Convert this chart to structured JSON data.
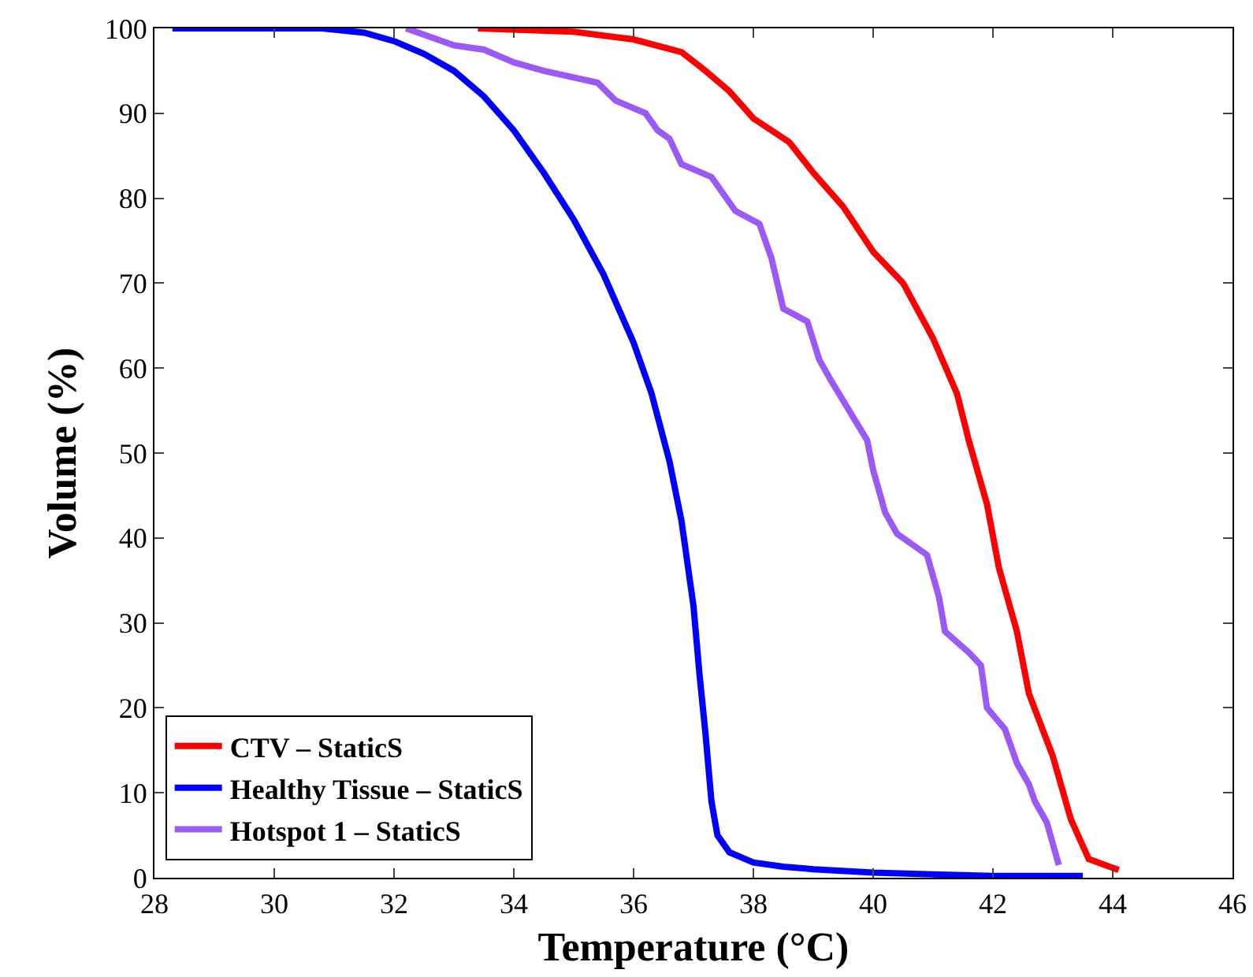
{
  "chart_data": {
    "type": "line",
    "xlabel": "Temperature (°C)",
    "ylabel": "Volume (%)",
    "xlim": [
      28,
      46
    ],
    "xticks": [
      28,
      30,
      32,
      34,
      36,
      38,
      40,
      42,
      44,
      46
    ],
    "ylim": [
      0,
      100
    ],
    "yticks": [
      0,
      10,
      20,
      30,
      40,
      50,
      60,
      70,
      80,
      90,
      100
    ],
    "grid": false,
    "legend": "bottom left",
    "line_style": "solid",
    "marker": "none",
    "series": [
      {
        "name": "CTV – StaticS",
        "color": "#ff0000",
        "x": [
          33.4,
          35,
          36,
          36.8,
          37.2,
          37.6,
          38,
          38.6,
          39,
          39.5,
          40,
          40.5,
          41,
          41.4,
          41.6,
          41.9,
          42.1,
          42.4,
          42.6,
          43,
          43.3,
          43.6,
          44.1
        ],
        "values": [
          100,
          99.6,
          98.7,
          97.2,
          95,
          92.6,
          89.4,
          86.6,
          83,
          79,
          73.7,
          70,
          63.5,
          57,
          51.4,
          44,
          36.5,
          29,
          21.7,
          14.3,
          6.9,
          2.2,
          0.9
        ]
      },
      {
        "name": "Healthy Tissue – StaticS",
        "color": "#0000ff",
        "x": [
          28.3,
          30.8,
          31.5,
          32,
          32.5,
          33,
          33.5,
          34,
          34.5,
          35,
          35.5,
          36,
          36.3,
          36.6,
          36.8,
          37,
          37.1,
          37.2,
          37.3,
          37.4,
          37.6,
          38,
          38.5,
          39,
          40,
          41,
          42,
          43.5
        ],
        "values": [
          100,
          100,
          99.5,
          98.5,
          97,
          95,
          92,
          88,
          83,
          77.5,
          71,
          63,
          57,
          49,
          42,
          32,
          24,
          17,
          9,
          5,
          3,
          1.8,
          1.3,
          1,
          0.6,
          0.4,
          0.2,
          0.2
        ]
      },
      {
        "name": "Hotspot 1 – StaticS",
        "color": "#9b59f5",
        "x": [
          32.2,
          32.6,
          33,
          33.5,
          34,
          34.5,
          35.4,
          35.7,
          36.2,
          36.4,
          36.6,
          36.8,
          37.3,
          37.7,
          38.1,
          38.3,
          38.5,
          38.9,
          39.1,
          39.3,
          39.6,
          39.9,
          40,
          40.2,
          40.4,
          40.9,
          41.1,
          41.2,
          41.6,
          41.8,
          41.9,
          42.2,
          42.4,
          42.6,
          42.7,
          42.9,
          43.1
        ],
        "values": [
          100,
          99,
          98,
          97.5,
          96,
          95,
          93.6,
          91.5,
          90,
          88,
          87,
          84,
          82.5,
          78.5,
          77,
          73,
          67,
          65.5,
          61,
          58.5,
          55,
          51.5,
          48,
          43,
          40.5,
          38,
          33,
          29,
          26.5,
          25,
          20,
          17.5,
          13.5,
          11,
          9,
          6.5,
          1.5
        ]
      }
    ]
  }
}
